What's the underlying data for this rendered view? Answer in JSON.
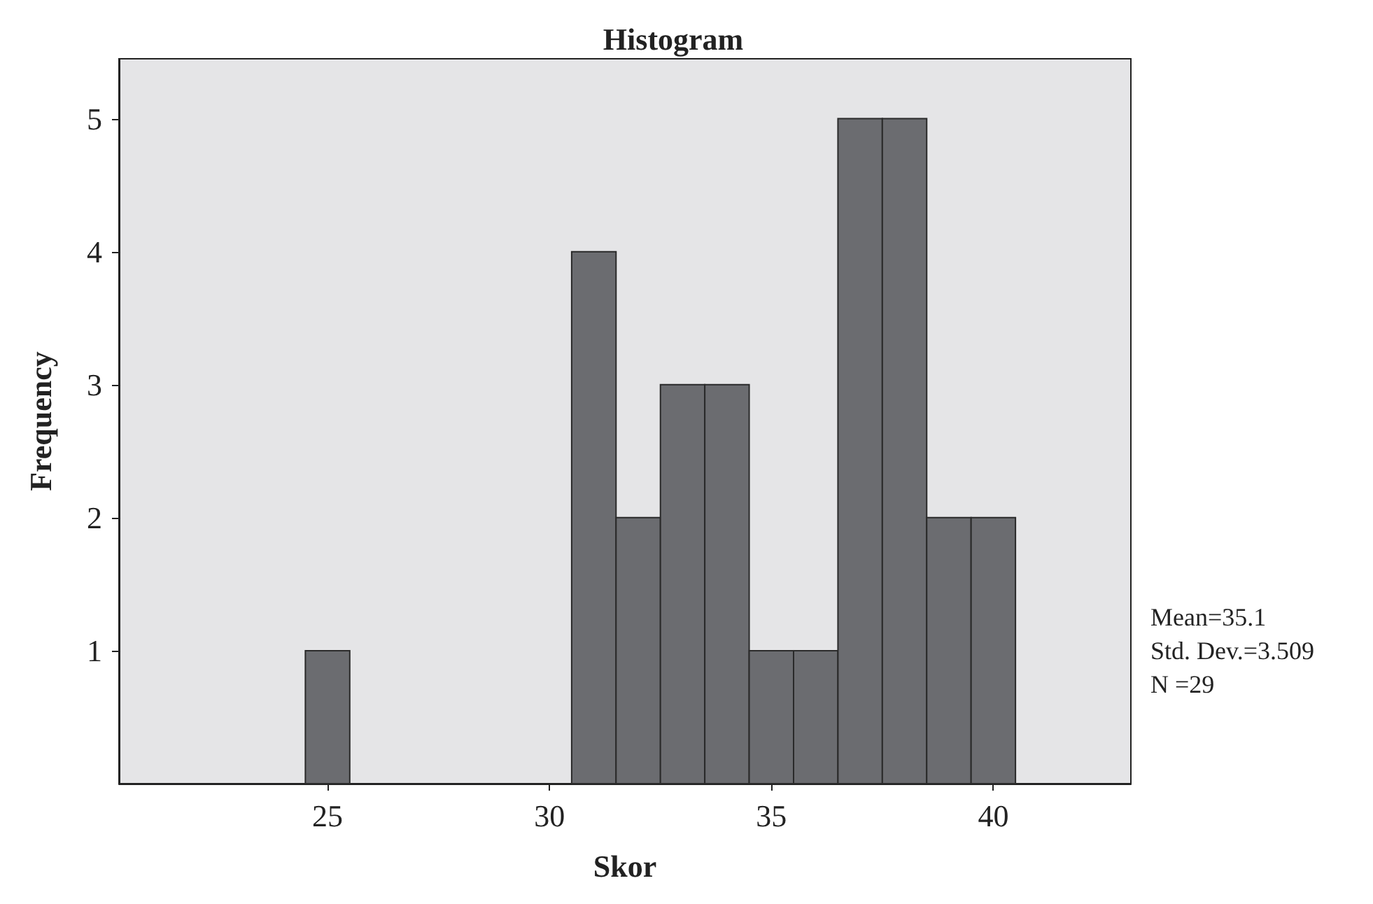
{
  "chart_data": {
    "type": "histogram",
    "title": "Histogram",
    "xlabel": "Skor",
    "ylabel": "Frequency",
    "bins": [
      24.5,
      25.5,
      26.5,
      27.5,
      28.5,
      29.5,
      30.5,
      31.5,
      32.5,
      33.5,
      34.5,
      35.5,
      36.5,
      37.5,
      38.5,
      39.5,
      40.5
    ],
    "values": [
      1,
      0,
      0,
      0,
      0,
      0,
      4,
      2,
      3,
      3,
      1,
      1,
      5,
      5,
      2,
      2
    ],
    "color": "#6b6c70",
    "xlim": [
      20.3,
      43.1
    ],
    "xticks": [
      25,
      30,
      35,
      40
    ],
    "ylim": [
      0,
      5.45
    ],
    "yticks": [
      1,
      2,
      3,
      4,
      5
    ],
    "annotations": [
      "Mean=35.1",
      "Std. Dev.=3.509",
      "N =29"
    ]
  }
}
